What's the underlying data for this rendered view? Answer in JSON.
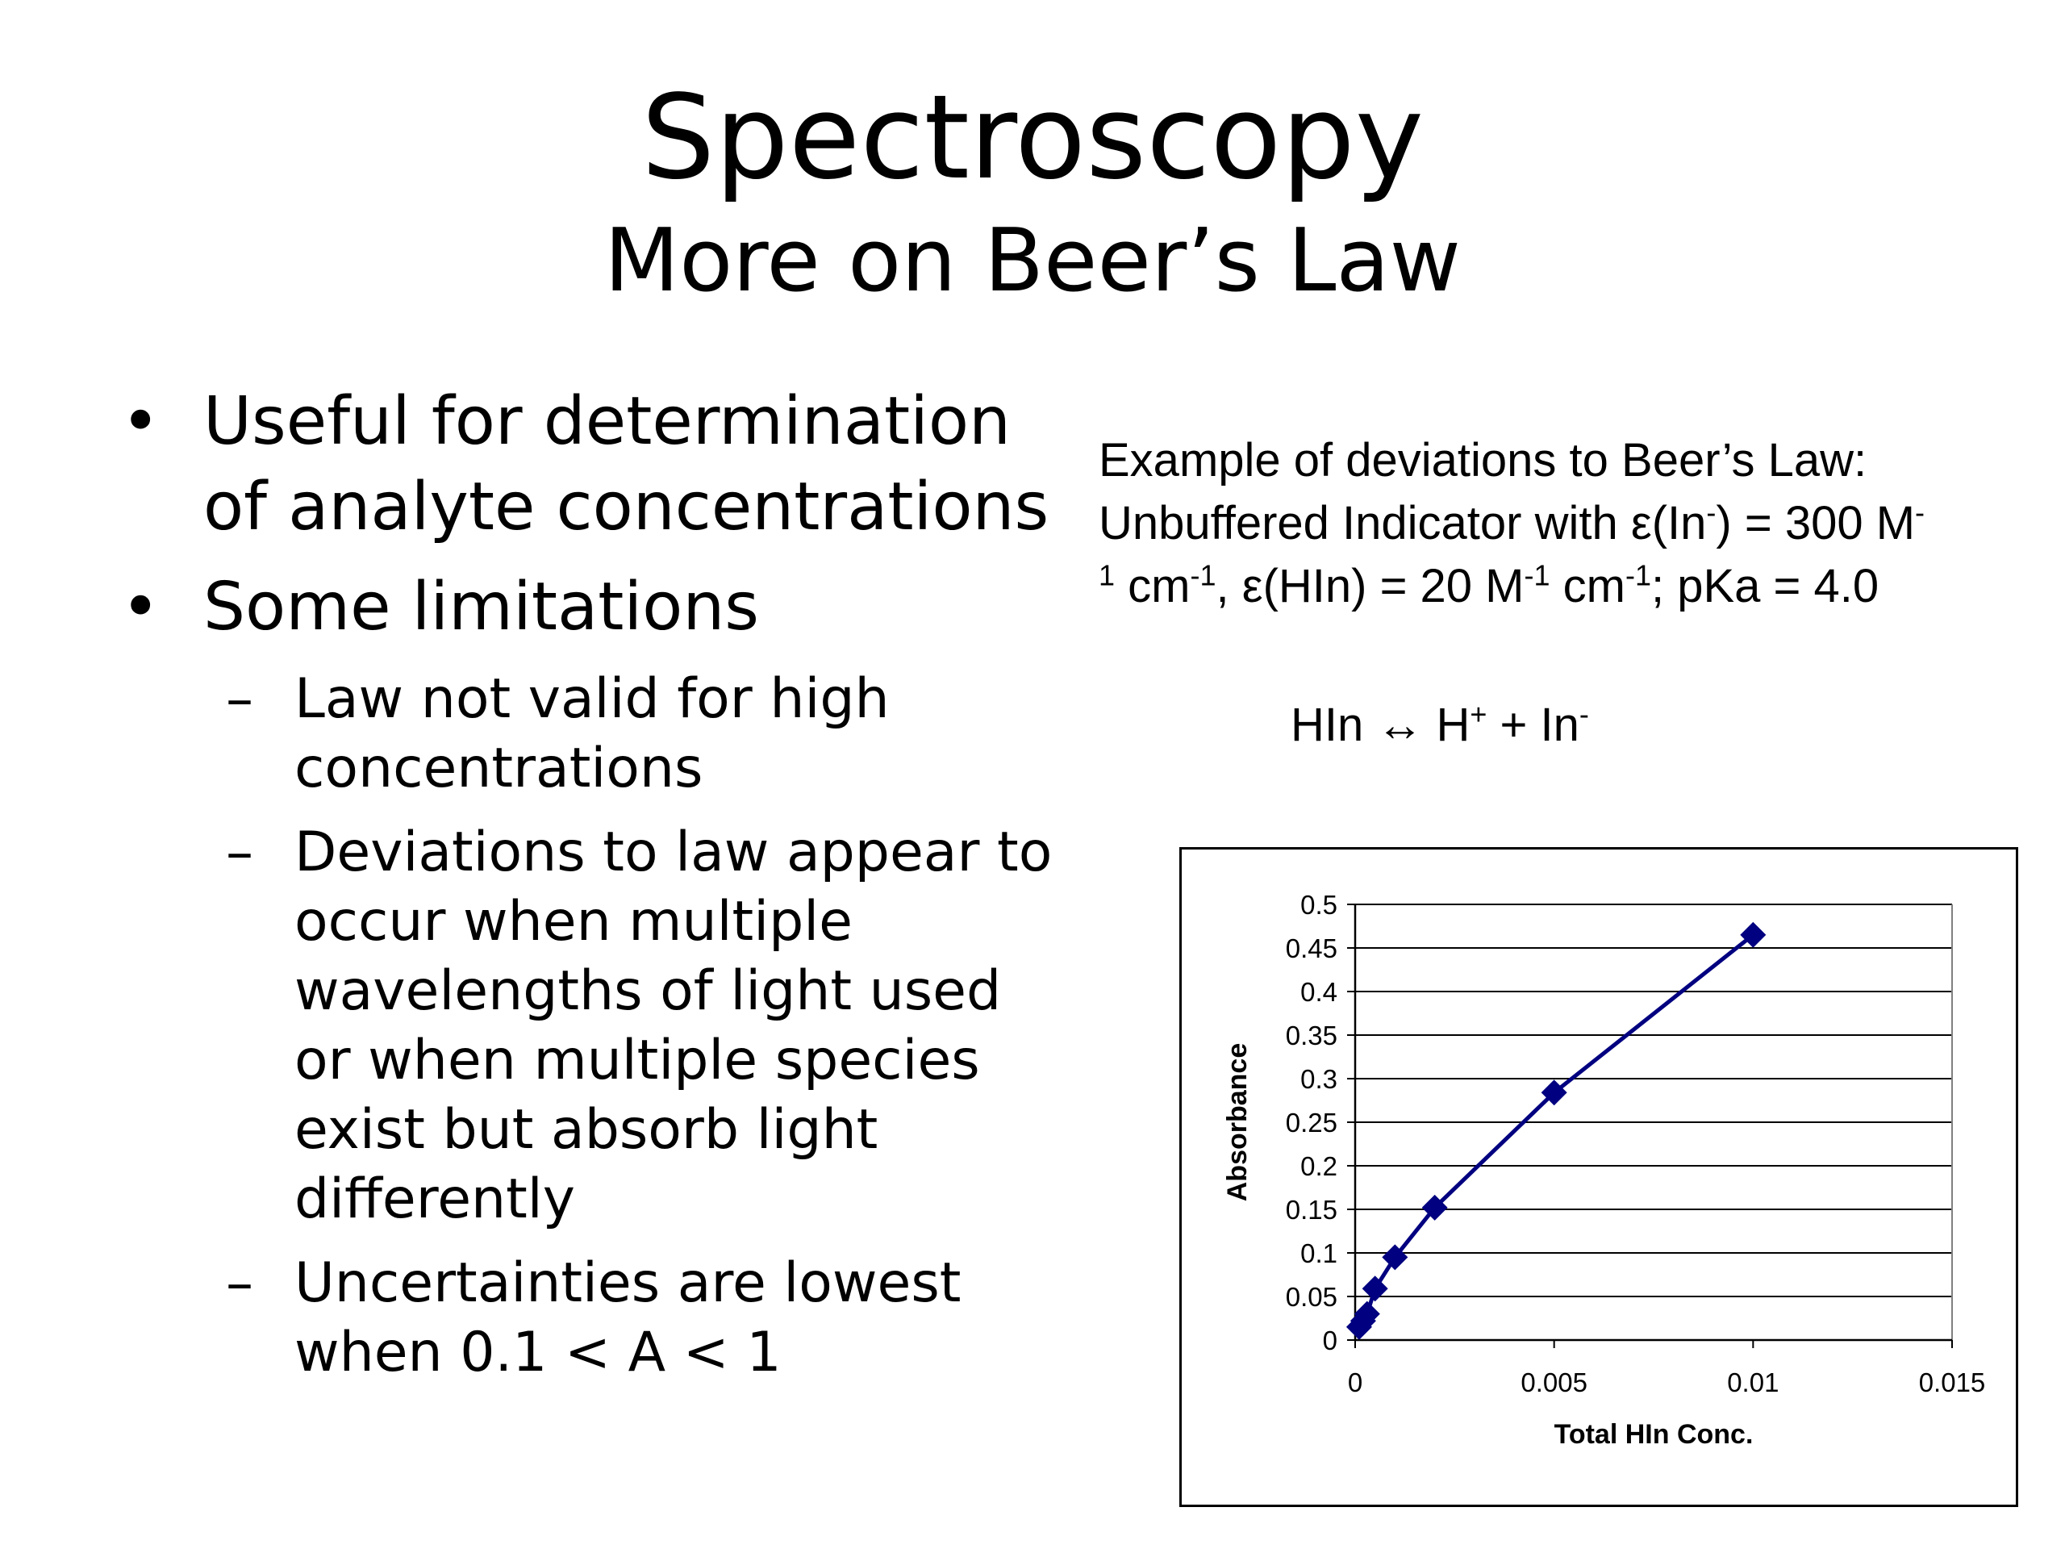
{
  "slide": {
    "title": "Spectroscopy",
    "subtitle": "More on Beer’s Law"
  },
  "bullets": [
    {
      "text": "Useful for determination of analyte concentrations"
    },
    {
      "text": "Some limitations"
    }
  ],
  "subbullets": [
    {
      "text": "Law not valid for high concentrations"
    },
    {
      "text": "Deviations to law appear to occur when multiple wavelengths of light used or when multiple species exist but absorb light differently"
    },
    {
      "text": "Uncertainties are lowest when 0.1 < A < 1"
    }
  ],
  "example": {
    "line1": "Example of deviations to Beer’s Law:",
    "line2_a": "Unbuffered Indicator with ε(In",
    "line2_sup1": "-",
    "line2_b": ") = 300 M",
    "line2_sup2": "-",
    "line3_sup0": "1",
    "line3_a": " cm",
    "line3_sup1": "-1",
    "line3_b": ", ε(HIn) = 20 M",
    "line3_sup2": "-1",
    "line3_c": " cm",
    "line3_sup3": "-1",
    "line3_d": "; pKa = 4.0"
  },
  "equation": {
    "a": "HIn ↔ H",
    "sup1": "+",
    "b": " + In",
    "sup2": "-"
  },
  "chart_data": {
    "type": "line",
    "xlabel": "Total HIn Conc.",
    "ylabel": "Absorbance",
    "xlim": [
      0,
      0.015
    ],
    "ylim": [
      0,
      0.5
    ],
    "x_ticks": [
      0,
      0.005,
      0.01,
      0.015
    ],
    "x_tick_labels": [
      "0",
      "0.005",
      "0.01",
      "0.015"
    ],
    "y_ticks": [
      0,
      0.05,
      0.1,
      0.15,
      0.2,
      0.25,
      0.3,
      0.35,
      0.4,
      0.45,
      0.5
    ],
    "y_tick_labels": [
      "0",
      "0.05",
      "0.1",
      "0.15",
      "0.2",
      "0.25",
      "0.3",
      "0.35",
      "0.4",
      "0.45",
      "0.5"
    ],
    "grid": "horizontal",
    "series": [
      {
        "x": [
          0.0001,
          0.0002,
          0.0003,
          0.0005,
          0.001,
          0.002,
          0.005,
          0.01
        ],
        "y": [
          0.015,
          0.022,
          0.03,
          0.059,
          0.095,
          0.152,
          0.284,
          0.465
        ],
        "color": "#000080",
        "marker": "diamond"
      }
    ]
  }
}
